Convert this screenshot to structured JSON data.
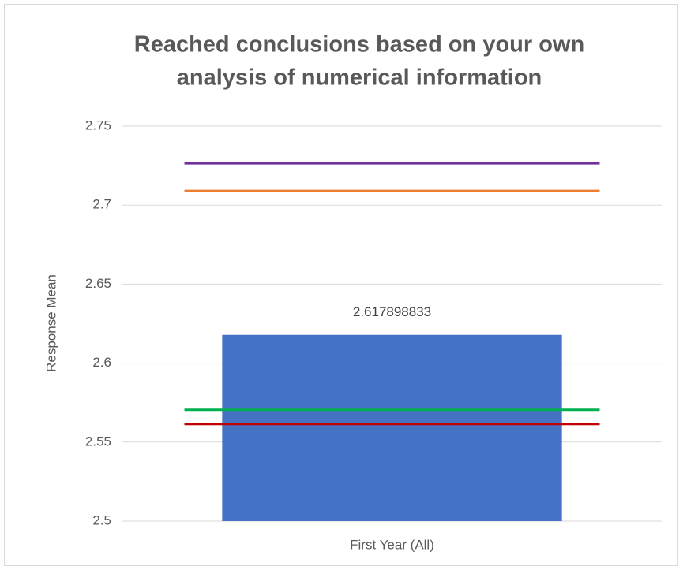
{
  "chart_data": {
    "type": "bar",
    "title": [
      "Reached conclusions based on your own",
      "analysis of numerical information"
    ],
    "y_label": "Response Mean",
    "categories": [
      "First Year (All)"
    ],
    "values": [
      2.617898833
    ],
    "color": "#4472c4",
    "reference_lines": [
      {
        "color": "#7030a0",
        "value": 2.7265
      },
      {
        "color": "#ed7d31",
        "value": 2.709
      },
      {
        "color": "#00b050",
        "value": 2.5705
      },
      {
        "color": "#c00000",
        "value": 2.5615
      }
    ],
    "ylim": [
      2.5,
      2.75
    ],
    "yticks": [
      2.5,
      2.55,
      2.6,
      2.65,
      2.7,
      2.75
    ],
    "grid": true
  }
}
